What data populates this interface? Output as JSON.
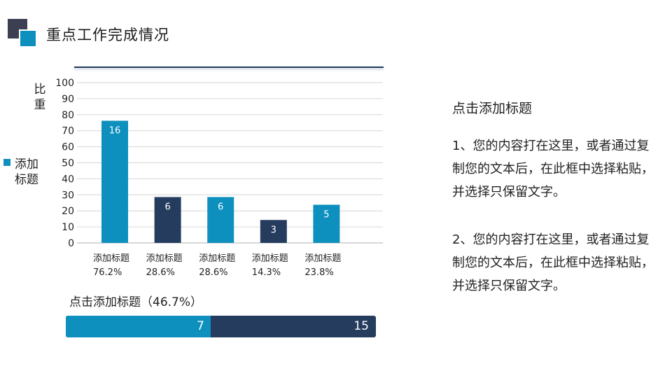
{
  "header": {
    "title": "重点工作完成情况"
  },
  "chart_data": {
    "type": "bar",
    "ylabel_chars": [
      "比",
      "重"
    ],
    "ylim": [
      0,
      100
    ],
    "yticks": [
      0,
      10,
      20,
      30,
      40,
      50,
      60,
      70,
      80,
      90,
      100
    ],
    "grid": true,
    "legend_chars": [
      "添加",
      "标题"
    ],
    "legend_placement": "left",
    "categories": [
      {
        "name": "添加标题",
        "percent": "76.2%",
        "value": 76.2,
        "label": "16",
        "color": "#0e90bf"
      },
      {
        "name": "添加标题",
        "percent": "28.6%",
        "value": 28.6,
        "label": "6",
        "color": "#263c5e"
      },
      {
        "name": "添加标题",
        "percent": "28.6%",
        "value": 28.6,
        "label": "6",
        "color": "#0e90bf"
      },
      {
        "name": "添加标题",
        "percent": "14.3%",
        "value": 14.3,
        "label": "3",
        "color": "#263c5e"
      },
      {
        "name": "添加标题",
        "percent": "23.8%",
        "value": 23.8,
        "label": "5",
        "color": "#0e90bf"
      }
    ]
  },
  "progress": {
    "title": "点击添加标题（46.7%）",
    "fraction": 0.467,
    "value_label": "7",
    "total_label": "15",
    "fill_color": "#0e90bf",
    "track_color": "#263c5e"
  },
  "side": {
    "title": "点击添加标题",
    "para1": "1、您的内容打在这里，或者通过复制您的文本后，在此框中选择粘贴，并选择只保留文字。",
    "para2": "2、您的内容打在这里，或者通过复制您的文本后，在此框中选择粘贴，并选择只保留文字。"
  },
  "colors": {
    "accent": "#0e90bf",
    "dark": "#263c5e",
    "logo_dark": "#3c3f52"
  }
}
